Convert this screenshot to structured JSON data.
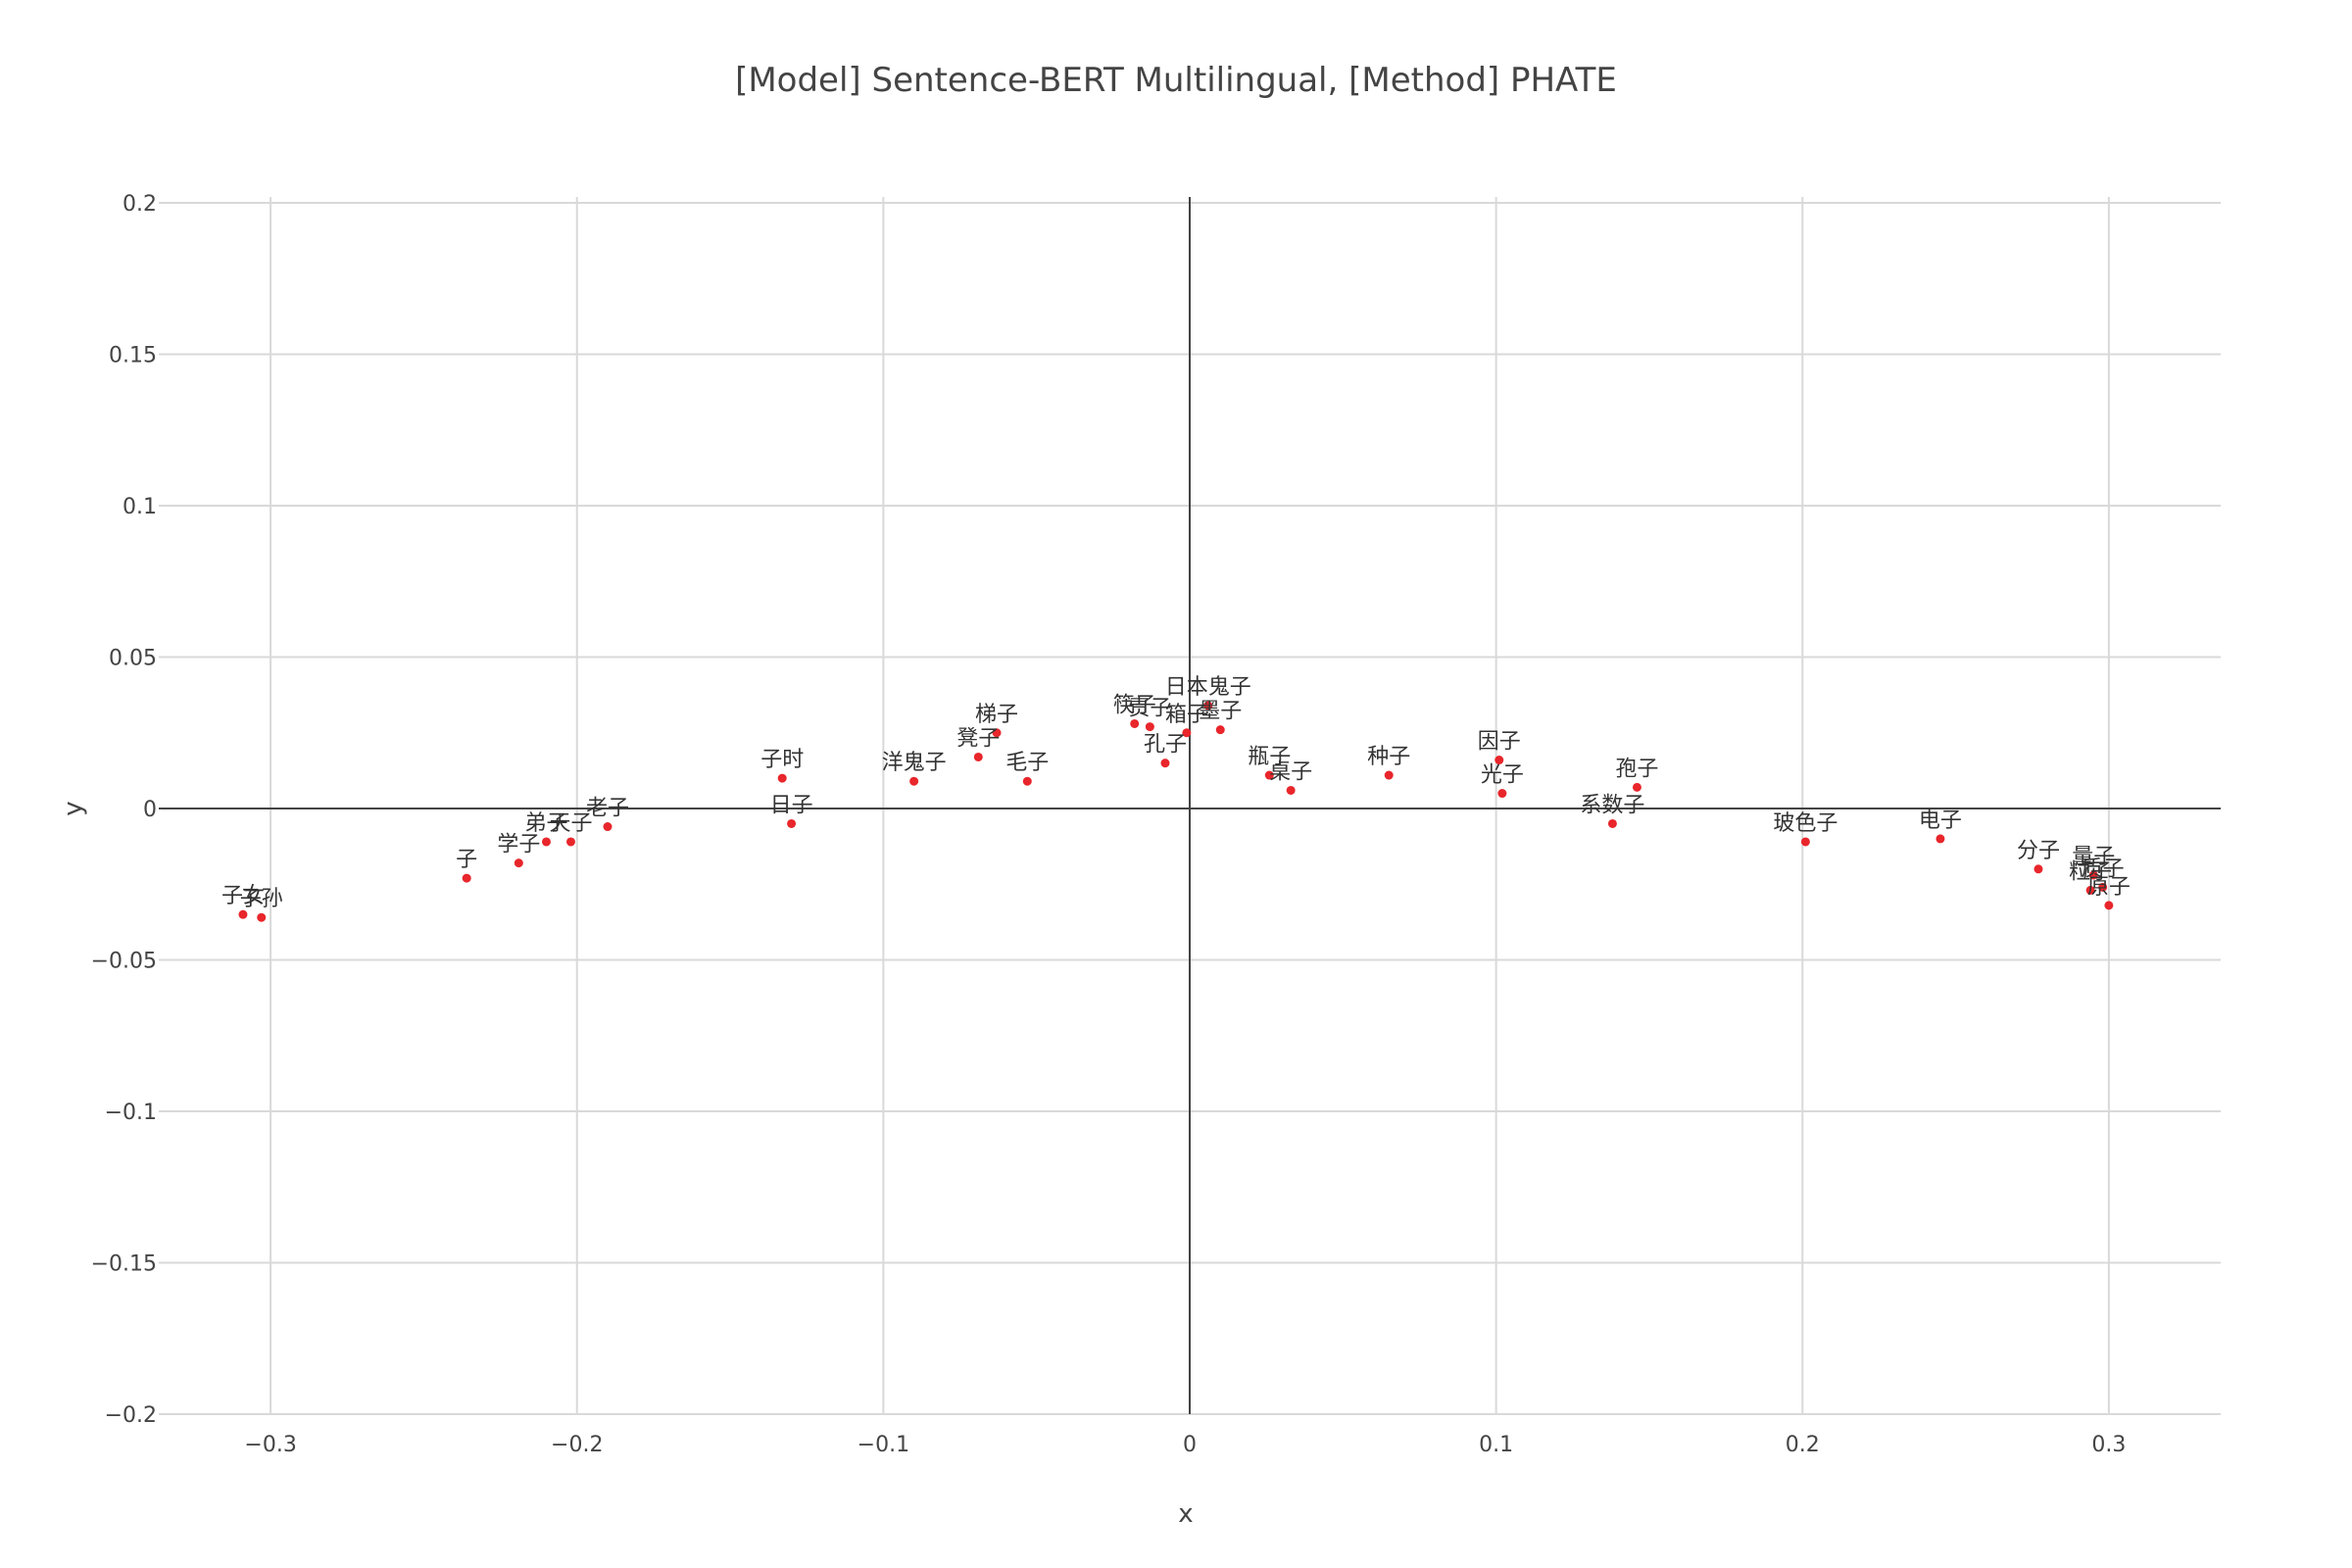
{
  "chart_data": {
    "type": "scatter",
    "title": "[Model] Sentence-BERT Multilingual, [Method] PHATE",
    "xlabel": "x",
    "ylabel": "y",
    "xlim": [
      -0.3365,
      0.3365
    ],
    "ylim": [
      -0.2,
      0.2
    ],
    "x_ticks": [
      -0.3,
      -0.2,
      -0.1,
      0,
      0.1,
      0.2,
      0.3
    ],
    "x_tick_labels": [
      "−0.3",
      "−0.2",
      "−0.1",
      "0",
      "0.1",
      "0.2",
      "0.3"
    ],
    "y_ticks": [
      0.2,
      0.15,
      0.1,
      0.05,
      0,
      -0.05,
      -0.1,
      -0.15,
      -0.2
    ],
    "y_tick_labels": [
      "0.2",
      "0.15",
      "0.1",
      "0.05",
      "0",
      "−0.05",
      "−0.1",
      "−0.15",
      "−0.2"
    ],
    "grid": true,
    "zero_lines": true,
    "marker_color": "#e8262b",
    "points": [
      {
        "label": "子女",
        "x": -0.309,
        "y": -0.035
      },
      {
        "label": "子孙",
        "x": -0.303,
        "y": -0.036
      },
      {
        "label": "子",
        "x": -0.236,
        "y": -0.023
      },
      {
        "label": "学子",
        "x": -0.219,
        "y": -0.018
      },
      {
        "label": "弟子",
        "x": -0.21,
        "y": -0.011
      },
      {
        "label": "天子",
        "x": -0.202,
        "y": -0.011
      },
      {
        "label": "老子",
        "x": -0.19,
        "y": -0.006
      },
      {
        "label": "子时",
        "x": -0.133,
        "y": 0.01
      },
      {
        "label": "日子",
        "x": -0.13,
        "y": -0.005
      },
      {
        "label": "洋鬼子",
        "x": -0.09,
        "y": 0.009
      },
      {
        "label": "凳子",
        "x": -0.069,
        "y": 0.017
      },
      {
        "label": "梯子",
        "x": -0.063,
        "y": 0.025
      },
      {
        "label": "毛子",
        "x": -0.053,
        "y": 0.009
      },
      {
        "label": "筷子",
        "x": -0.018,
        "y": 0.028
      },
      {
        "label": "责子",
        "x": -0.013,
        "y": 0.027
      },
      {
        "label": "孔子",
        "x": -0.008,
        "y": 0.015
      },
      {
        "label": "箱子",
        "x": -0.001,
        "y": 0.025
      },
      {
        "label": "日本鬼子",
        "x": 0.006,
        "y": 0.034
      },
      {
        "label": "墨子",
        "x": 0.01,
        "y": 0.026
      },
      {
        "label": "瓶子",
        "x": 0.026,
        "y": 0.011
      },
      {
        "label": "桌子",
        "x": 0.033,
        "y": 0.006
      },
      {
        "label": "种子",
        "x": 0.065,
        "y": 0.011
      },
      {
        "label": "因子",
        "x": 0.101,
        "y": 0.016
      },
      {
        "label": "光子",
        "x": 0.102,
        "y": 0.005
      },
      {
        "label": "系数子",
        "x": 0.138,
        "y": -0.005
      },
      {
        "label": "孢子",
        "x": 0.146,
        "y": 0.007
      },
      {
        "label": "玻色子",
        "x": 0.201,
        "y": -0.011
      },
      {
        "label": "电子",
        "x": 0.245,
        "y": -0.01
      },
      {
        "label": "分子",
        "x": 0.277,
        "y": -0.02
      },
      {
        "label": "量子",
        "x": 0.295,
        "y": -0.022
      },
      {
        "label": "粒子",
        "x": 0.294,
        "y": -0.027
      },
      {
        "label": "质子",
        "x": 0.298,
        "y": -0.026
      },
      {
        "label": "原子",
        "x": 0.3,
        "y": -0.032
      }
    ]
  }
}
